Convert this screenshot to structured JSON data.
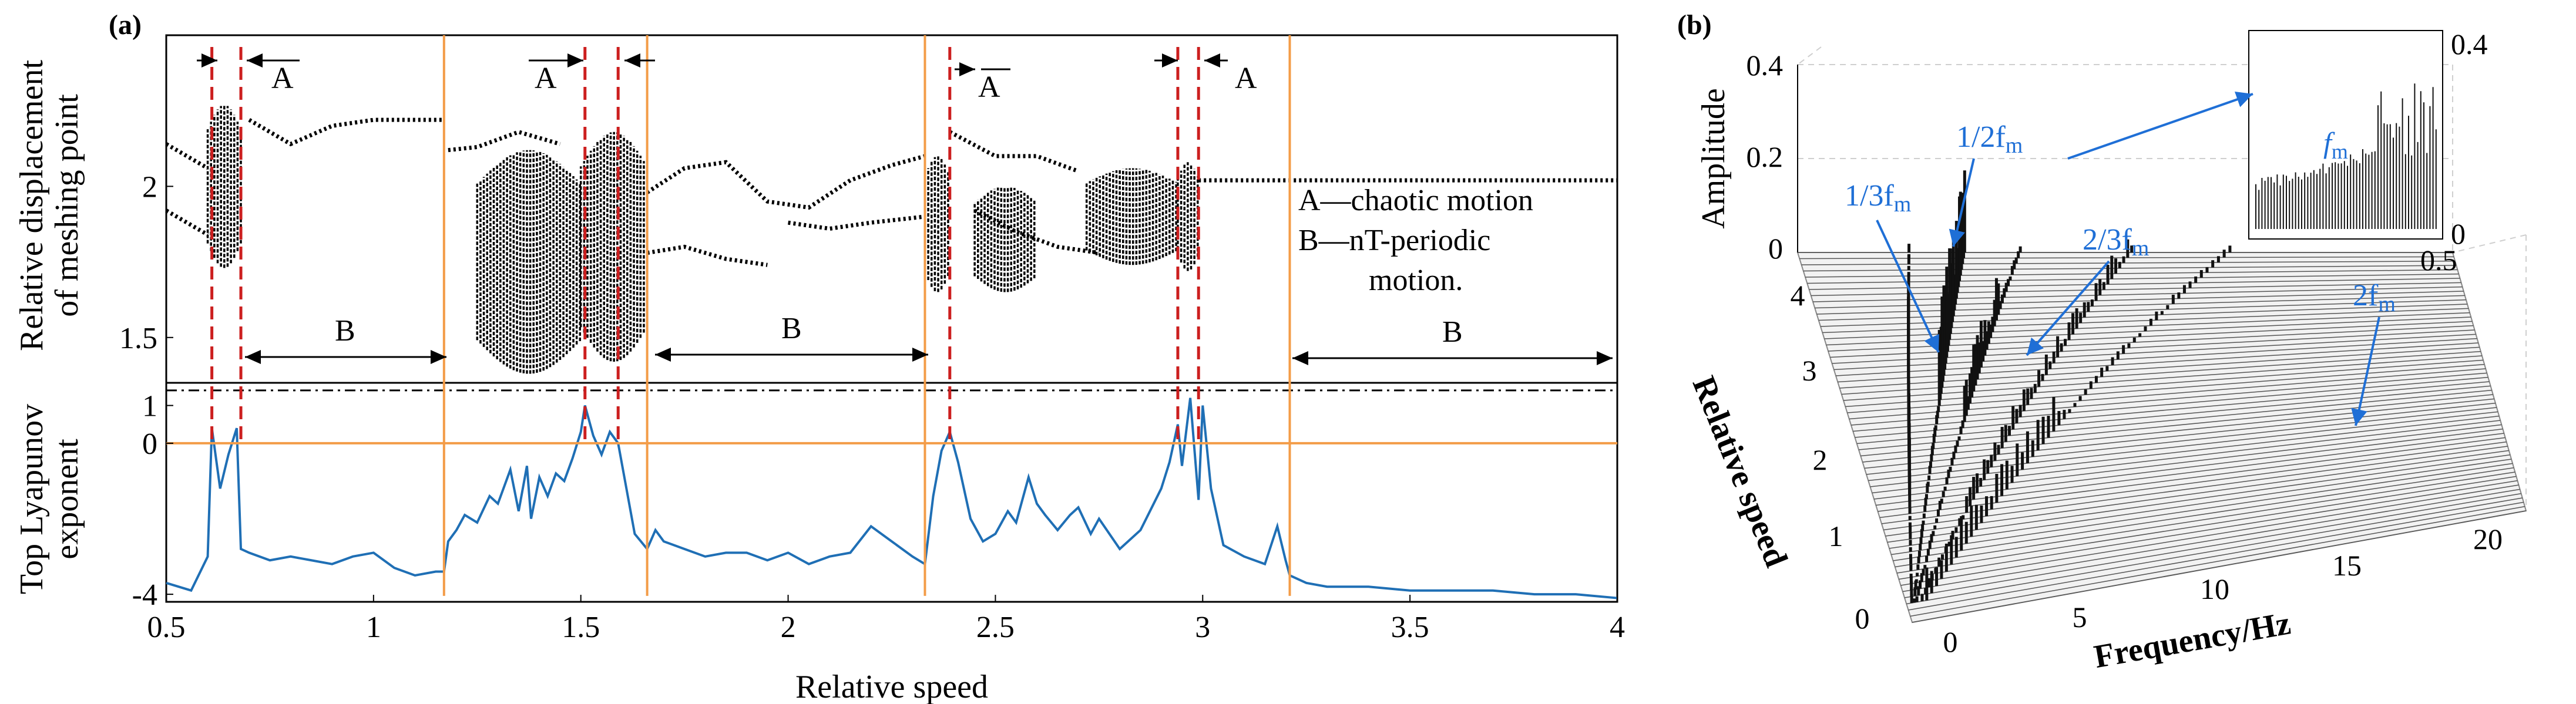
{
  "panel_a": {
    "label": "(a)",
    "x_label": "Relative speed",
    "y_label_top_line1": "Relative displacement",
    "y_label_top_line2": "of meshing point",
    "y_label_bottom_line1": "Top Lyapunov",
    "y_label_bottom_line2": "exponent",
    "legend_a": "A—chaotic motion",
    "legend_b_line1": "B—nT-periodic",
    "legend_b_line2": "motion.",
    "marker_a": "A",
    "marker_b": "B",
    "colors": {
      "boundary": "#f39c48",
      "chaos_marker": "#cc1f1f",
      "lyapunov": "#1f6fb5",
      "bifurcation": "#000000"
    }
  },
  "panel_b": {
    "label": "(b)",
    "z_label": "Amplitude",
    "y_label": "Relative speed",
    "x_label": "Frequency/Hz",
    "z_ticks": [
      "0",
      "0.2",
      "0.4"
    ],
    "speed_ticks": [
      "0",
      "1",
      "2",
      "3",
      "4"
    ],
    "freq_ticks": [
      "0",
      "5",
      "10",
      "15",
      "20"
    ],
    "inset": {
      "label": "f",
      "label_sub": "m",
      "y_ticks": [
        "0",
        "0.4"
      ],
      "x_ticks": [
        "0.5"
      ]
    },
    "annotations": [
      {
        "text": "1/3f",
        "sub": "m"
      },
      {
        "text": "1/2f",
        "sub": "m"
      },
      {
        "text": "2/3f",
        "sub": "m"
      },
      {
        "text": "2f",
        "sub": "m"
      }
    ],
    "colors": {
      "annotation": "#1f6fd6"
    }
  },
  "chart_data": [
    {
      "type": "scatter",
      "panel": "(a) top",
      "xlabel": "Relative speed",
      "ylabel": "Relative displacement of meshing point",
      "xlim": [
        0.5,
        4
      ],
      "ylim": [
        1.35,
        2.5
      ],
      "x_ticks": [
        "0.5",
        "1",
        "1.5",
        "2",
        "2.5",
        "3",
        "3.5",
        "4"
      ],
      "y_ticks": [
        "1.5",
        "2"
      ],
      "chaotic_boundaries": [
        0.61,
        0.68,
        1.51,
        1.59,
        2.39,
        2.94,
        2.99
      ],
      "regime_boundaries": [
        1.17,
        1.66,
        2.33,
        3.21
      ],
      "chaotic_intervals": [
        [
          0.61,
          0.68
        ],
        [
          1.51,
          1.66
        ],
        [
          2.33,
          2.39
        ],
        [
          2.94,
          2.99
        ]
      ],
      "periodic_intervals": [
        [
          0.68,
          1.17
        ],
        [
          1.66,
          2.33
        ],
        [
          3.21,
          4.0
        ]
      ],
      "branches": [
        {
          "x": [
            0.5,
            0.6
          ],
          "y": [
            2.14,
            2.06
          ]
        },
        {
          "x": [
            0.5,
            0.6
          ],
          "y": [
            1.92,
            1.84
          ]
        },
        {
          "x": [
            0.7,
            0.8,
            0.9,
            1.0,
            1.17
          ],
          "y": [
            2.22,
            2.14,
            2.2,
            2.22,
            2.22
          ]
        },
        {
          "x": [
            1.18,
            1.25,
            1.35,
            1.45
          ],
          "y": [
            2.12,
            2.13,
            2.18,
            2.14
          ]
        },
        {
          "x": [
            1.66,
            1.75,
            1.85,
            1.95,
            2.05,
            2.15,
            2.25,
            2.33
          ],
          "y": [
            1.98,
            2.06,
            2.08,
            1.95,
            1.93,
            2.02,
            2.07,
            2.1
          ]
        },
        {
          "x": [
            1.66,
            1.75,
            1.85,
            1.95
          ],
          "y": [
            1.78,
            1.8,
            1.76,
            1.74
          ]
        },
        {
          "x": [
            2.0,
            2.1,
            2.2,
            2.33
          ],
          "y": [
            1.88,
            1.86,
            1.88,
            1.9
          ]
        },
        {
          "x": [
            2.39,
            2.5,
            2.6,
            2.7
          ],
          "y": [
            2.18,
            2.1,
            2.1,
            2.05
          ]
        },
        {
          "x": [
            2.45,
            2.55,
            2.65,
            2.75
          ],
          "y": [
            1.92,
            1.85,
            1.8,
            1.78
          ]
        },
        {
          "x": [
            2.99,
            3.1,
            3.2,
            3.5,
            3.8,
            4.0
          ],
          "y": [
            2.02,
            2.02,
            2.02,
            2.02,
            2.02,
            2.02
          ]
        }
      ],
      "bands": [
        {
          "x": [
            0.6,
            0.68
          ],
          "ymin": 1.73,
          "ymax": 2.27
        },
        {
          "x": [
            1.25,
            1.5
          ],
          "ymin": 1.38,
          "ymax": 2.12
        },
        {
          "x": [
            1.5,
            1.66
          ],
          "ymin": 1.42,
          "ymax": 2.18
        },
        {
          "x": [
            2.33,
            2.39
          ],
          "ymin": 1.65,
          "ymax": 2.1
        },
        {
          "x": [
            2.45,
            2.6
          ],
          "ymin": 1.65,
          "ymax": 2.0
        },
        {
          "x": [
            2.72,
            2.94
          ],
          "ymin": 1.74,
          "ymax": 2.06
        },
        {
          "x": [
            2.94,
            2.99
          ],
          "ymin": 1.72,
          "ymax": 2.08
        }
      ]
    },
    {
      "type": "line",
      "panel": "(a) bottom",
      "xlabel": "Relative speed",
      "ylabel": "Top Lyapunov exponent",
      "xlim": [
        0.5,
        4
      ],
      "ylim": [
        -4.2,
        1.6
      ],
      "x_ticks": [
        "0.5",
        "1",
        "1.5",
        "2",
        "2.5",
        "3",
        "3.5",
        "4"
      ],
      "y_ticks": [
        "-4",
        "0",
        "1"
      ],
      "zero_line": 0,
      "threshold_line": 1.4,
      "series": [
        {
          "x": [
            0.5,
            0.56,
            0.6,
            0.61,
            0.63,
            0.65,
            0.67,
            0.68,
            0.7,
            0.75,
            0.8,
            0.85,
            0.9,
            0.95,
            1.0,
            1.05,
            1.1,
            1.15,
            1.17,
            1.18,
            1.2,
            1.22,
            1.25,
            1.28,
            1.3,
            1.33,
            1.35,
            1.37,
            1.38,
            1.4,
            1.42,
            1.44,
            1.46,
            1.48,
            1.5,
            1.51,
            1.53,
            1.55,
            1.57,
            1.59,
            1.61,
            1.63,
            1.66,
            1.68,
            1.7,
            1.75,
            1.8,
            1.85,
            1.9,
            1.95,
            2.0,
            2.05,
            2.1,
            2.15,
            2.2,
            2.25,
            2.3,
            2.33,
            2.35,
            2.37,
            2.39,
            2.41,
            2.44,
            2.47,
            2.5,
            2.53,
            2.55,
            2.58,
            2.6,
            2.62,
            2.65,
            2.68,
            2.7,
            2.73,
            2.75,
            2.8,
            2.85,
            2.9,
            2.92,
            2.94,
            2.95,
            2.97,
            2.99,
            3.0,
            3.02,
            3.05,
            3.1,
            3.15,
            3.18,
            3.2,
            3.21,
            3.25,
            3.3,
            3.4,
            3.5,
            3.6,
            3.7,
            3.8,
            3.9,
            4.0
          ],
          "y": [
            -3.7,
            -3.9,
            -3.0,
            0.4,
            -1.2,
            -0.3,
            0.4,
            -2.8,
            -2.9,
            -3.1,
            -3.0,
            -3.1,
            -3.2,
            -3.0,
            -2.9,
            -3.3,
            -3.5,
            -3.4,
            -3.4,
            -2.6,
            -2.3,
            -1.9,
            -2.1,
            -1.4,
            -1.6,
            -0.7,
            -1.8,
            -0.6,
            -2.0,
            -0.9,
            -1.4,
            -0.8,
            -1.0,
            -0.4,
            0.3,
            1.0,
            0.2,
            -0.3,
            0.3,
            0.0,
            -1.2,
            -2.4,
            -2.8,
            -2.3,
            -2.6,
            -2.8,
            -3.0,
            -2.9,
            -2.9,
            -3.1,
            -2.9,
            -3.2,
            -3.0,
            -2.9,
            -2.2,
            -2.6,
            -3.0,
            -3.2,
            -1.4,
            -0.2,
            0.3,
            -0.5,
            -2.0,
            -2.6,
            -2.4,
            -1.8,
            -2.1,
            -0.9,
            -1.6,
            -1.9,
            -2.3,
            -1.9,
            -1.7,
            -2.4,
            -2.0,
            -2.8,
            -2.3,
            -1.2,
            -0.5,
            0.5,
            -0.6,
            1.2,
            -1.5,
            1.0,
            -1.2,
            -2.7,
            -3.0,
            -3.2,
            -2.2,
            -3.1,
            -3.5,
            -3.7,
            -3.8,
            -3.8,
            -3.9,
            -3.9,
            -3.9,
            -4.0,
            -4.0,
            -4.1
          ]
        }
      ]
    },
    {
      "type": "waterfall",
      "panel": "(b)",
      "xlabel": "Frequency/Hz",
      "ylabel": "Relative speed",
      "zlabel": "Amplitude",
      "xlim": [
        0,
        20
      ],
      "ylim": [
        0,
        4
      ],
      "zlim": [
        0,
        0.4
      ],
      "peaks": [
        {
          "label": "1/3fm",
          "freq_per_speed": 1.0
        },
        {
          "label": "1/2fm",
          "freq_per_speed": 1.5
        },
        {
          "label": "2/3fm",
          "freq_per_speed": 2.0
        },
        {
          "label": "fm",
          "freq_per_speed": 3.0
        },
        {
          "label": "2fm",
          "freq_per_speed": 6.0
        }
      ]
    }
  ]
}
